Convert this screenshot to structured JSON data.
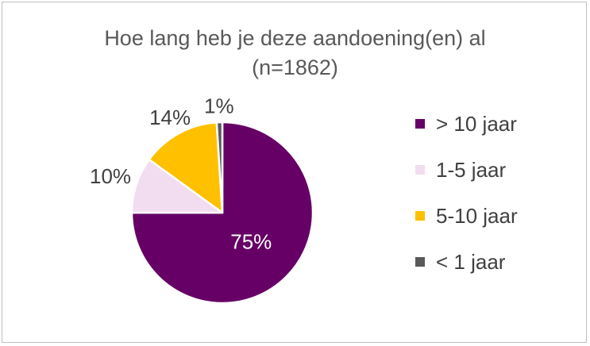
{
  "chart_data": {
    "type": "pie",
    "title_line1": "Hoe lang heb je deze aandoening(en) al",
    "title_line2": "(n=1862)",
    "labels": [
      "> 10 jaar",
      "1-5 jaar",
      "5-10 jaar",
      "< 1 jaar"
    ],
    "values": [
      75,
      10,
      14,
      1
    ],
    "data_labels": [
      "75%",
      "10%",
      "14%",
      "1%"
    ],
    "colors": [
      "#660066",
      "#F2DCEF",
      "#FFC000",
      "#595959"
    ],
    "label_colors": [
      "#FFFFFF",
      "#404040",
      "#404040",
      "#404040"
    ],
    "legend_position": "right"
  }
}
